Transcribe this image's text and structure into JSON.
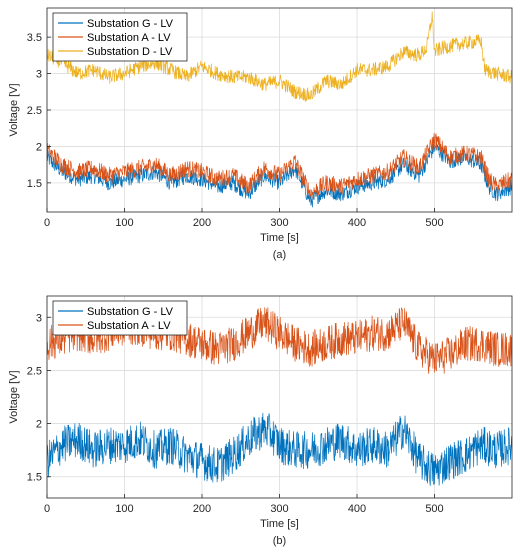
{
  "chart_data": [
    {
      "type": "line",
      "panel_label": "(a)",
      "xlabel": "Time [s]",
      "ylabel": "Voltage [V]",
      "xlim": [
        0,
        600
      ],
      "ylim": [
        1.1,
        3.9
      ],
      "xticks": [
        0,
        100,
        200,
        300,
        400,
        500
      ],
      "yticks": [
        1.5,
        2,
        2.5,
        3,
        3.5
      ],
      "grid": true,
      "legend_position": "top-left",
      "series": [
        {
          "name": "Substation G - LV",
          "color": "#0072BD",
          "x": [
            0,
            20,
            40,
            60,
            80,
            100,
            120,
            140,
            160,
            180,
            200,
            220,
            240,
            260,
            280,
            300,
            320,
            340,
            360,
            380,
            400,
            420,
            440,
            460,
            480,
            495,
            500,
            520,
            540,
            560,
            570,
            580,
            600
          ],
          "y": [
            1.85,
            1.65,
            1.55,
            1.6,
            1.5,
            1.55,
            1.6,
            1.65,
            1.5,
            1.6,
            1.55,
            1.45,
            1.5,
            1.35,
            1.6,
            1.5,
            1.7,
            1.25,
            1.4,
            1.35,
            1.45,
            1.5,
            1.55,
            1.75,
            1.6,
            1.9,
            2.0,
            1.8,
            1.85,
            1.75,
            1.45,
            1.35,
            1.45
          ],
          "noise": 0.11
        },
        {
          "name": "Substation A - LV",
          "color": "#D95319",
          "x": [
            0,
            20,
            40,
            60,
            80,
            100,
            120,
            140,
            160,
            180,
            200,
            220,
            240,
            260,
            280,
            300,
            320,
            340,
            360,
            380,
            400,
            420,
            440,
            460,
            480,
            495,
            500,
            520,
            540,
            560,
            570,
            580,
            600
          ],
          "y": [
            1.95,
            1.75,
            1.65,
            1.7,
            1.6,
            1.65,
            1.7,
            1.75,
            1.6,
            1.7,
            1.65,
            1.55,
            1.6,
            1.45,
            1.7,
            1.6,
            1.8,
            1.35,
            1.5,
            1.45,
            1.55,
            1.6,
            1.65,
            1.85,
            1.7,
            2.0,
            2.1,
            1.85,
            1.9,
            1.85,
            1.55,
            1.45,
            1.55
          ],
          "noise": 0.12
        },
        {
          "name": "Substation D - LV",
          "color": "#EDB120",
          "x": [
            0,
            20,
            40,
            60,
            80,
            100,
            120,
            140,
            160,
            180,
            200,
            220,
            240,
            260,
            280,
            300,
            320,
            340,
            360,
            380,
            400,
            420,
            440,
            460,
            480,
            490,
            497,
            500,
            510,
            530,
            560,
            565,
            580,
            600
          ],
          "y": [
            3.25,
            3.15,
            3.0,
            3.05,
            2.95,
            3.0,
            3.1,
            3.15,
            3.05,
            2.95,
            3.1,
            3.0,
            2.95,
            2.95,
            2.85,
            2.9,
            2.75,
            2.7,
            2.9,
            2.85,
            3.05,
            3.05,
            3.1,
            3.3,
            3.25,
            3.35,
            3.8,
            3.3,
            3.35,
            3.4,
            3.45,
            3.05,
            3.0,
            2.95
          ],
          "noise": 0.1
        }
      ]
    },
    {
      "type": "line",
      "panel_label": "(b)",
      "xlabel": "Time [s]",
      "ylabel": "Voltage [V]",
      "xlim": [
        0,
        600
      ],
      "ylim": [
        1.3,
        3.2
      ],
      "xticks": [
        0,
        100,
        200,
        300,
        400,
        500
      ],
      "yticks": [
        1.5,
        2,
        2.5,
        3
      ],
      "grid": true,
      "legend_position": "top-left",
      "series": [
        {
          "name": "Substation G - LV",
          "color": "#0072BD",
          "x": [
            0,
            20,
            40,
            60,
            80,
            100,
            120,
            140,
            160,
            180,
            200,
            220,
            240,
            260,
            280,
            290,
            300,
            320,
            340,
            360,
            380,
            400,
            420,
            440,
            460,
            480,
            500,
            520,
            540,
            560,
            580,
            600
          ],
          "y": [
            1.65,
            1.8,
            1.85,
            1.75,
            1.8,
            1.8,
            1.85,
            1.75,
            1.8,
            1.7,
            1.65,
            1.6,
            1.7,
            1.85,
            1.95,
            1.9,
            1.8,
            1.75,
            1.75,
            1.8,
            1.85,
            1.75,
            1.8,
            1.75,
            1.95,
            1.65,
            1.55,
            1.65,
            1.7,
            1.8,
            1.75,
            1.8
          ],
          "noise": 0.18
        },
        {
          "name": "Substation A - LV",
          "color": "#D95319",
          "x": [
            0,
            20,
            40,
            60,
            80,
            100,
            120,
            140,
            160,
            180,
            200,
            220,
            240,
            260,
            280,
            290,
            300,
            320,
            340,
            360,
            380,
            400,
            420,
            440,
            460,
            480,
            500,
            520,
            540,
            560,
            580,
            600
          ],
          "y": [
            2.75,
            2.8,
            2.85,
            2.8,
            2.85,
            2.9,
            2.9,
            2.85,
            2.85,
            2.8,
            2.75,
            2.7,
            2.75,
            2.85,
            2.95,
            2.9,
            2.85,
            2.75,
            2.7,
            2.75,
            2.8,
            2.8,
            2.85,
            2.85,
            2.95,
            2.7,
            2.6,
            2.65,
            2.75,
            2.75,
            2.7,
            2.7
          ],
          "noise": 0.17
        }
      ]
    }
  ]
}
